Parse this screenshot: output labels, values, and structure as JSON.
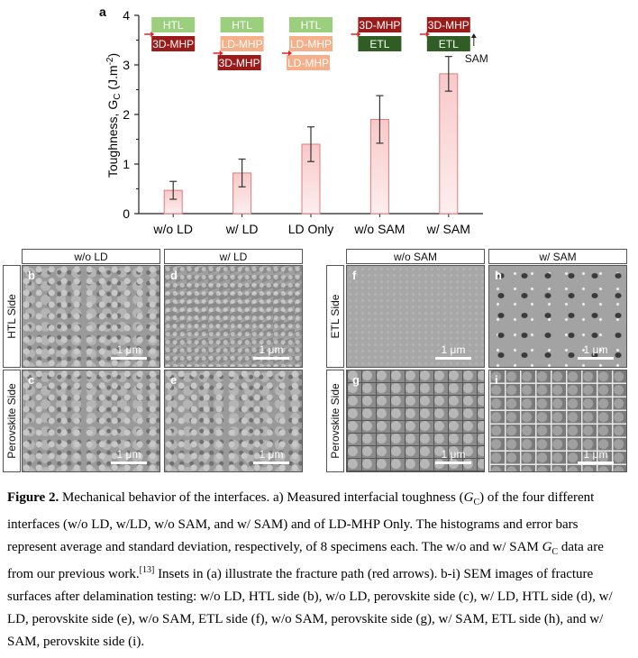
{
  "chart_data": {
    "panel_label": "a",
    "type": "bar",
    "ylabel_main": "Toughness, G",
    "ylabel_sub": "C",
    "ylabel_unit": " (J.m",
    "ylabel_unit_sup": "-2",
    "ylabel_close": ")",
    "ylim": [
      0,
      4
    ],
    "yticks": [
      "0",
      "1",
      "2",
      "3",
      "4"
    ],
    "categories": [
      "w/o LD",
      "w/ LD",
      "LD Only",
      "w/o SAM",
      "w/ SAM"
    ],
    "values": [
      0.47,
      0.82,
      1.4,
      1.9,
      2.82
    ],
    "errors": [
      0.18,
      0.28,
      0.35,
      0.48,
      0.35
    ],
    "bar_color_top": "#f8c9c9",
    "bar_color_bottom": "#fdeeee",
    "bar_stroke": "#e07c7c",
    "insets": [
      {
        "layers": [
          {
            "text": "HTL",
            "color": "#9bcf7e",
            "text_color": "#ffffff"
          },
          {
            "text": "3D-MHP",
            "color": "#9b1b1b",
            "text_color": "#ffffff"
          }
        ],
        "arrow_at": 1
      },
      {
        "layers": [
          {
            "text": "HTL",
            "color": "#9bcf7e",
            "text_color": "#ffffff"
          },
          {
            "text": "LD-MHP",
            "color": "#f5b08a",
            "text_color": "#ffffff"
          },
          {
            "text": "3D-MHP",
            "color": "#9b1b1b",
            "text_color": "#ffffff"
          }
        ],
        "arrow_at": 2
      },
      {
        "layers": [
          {
            "text": "HTL",
            "color": "#9bcf7e",
            "text_color": "#ffffff"
          },
          {
            "text": "LD-MHP",
            "color": "#f5b08a",
            "text_color": "#ffffff"
          },
          {
            "text": "LD-MHP",
            "color": "#f5b08a",
            "text_color": "#ffffff"
          }
        ],
        "arrow_at": 2
      },
      {
        "layers": [
          {
            "text": "3D-MHP",
            "color": "#9b1b1b",
            "text_color": "#ffffff"
          },
          {
            "text": "ETL",
            "color": "#2f5d23",
            "text_color": "#ffffff"
          }
        ],
        "arrow_at": 1
      },
      {
        "layers": [
          {
            "text": "3D-MHP",
            "color": "#9b1b1b",
            "text_color": "#ffffff"
          },
          {
            "text": "ETL",
            "color": "#2f5d23",
            "text_color": "#ffffff"
          }
        ],
        "arrow_at": 1,
        "extra_label": "SAM"
      }
    ],
    "arrow_color": "#e02020"
  },
  "sem": {
    "left_columns": [
      "w/o LD",
      "w/ LD"
    ],
    "right_columns": [
      "w/o SAM",
      "w/ SAM"
    ],
    "left_rows": [
      "HTL Side",
      "Perovskite Side"
    ],
    "right_rows": [
      "ETL Side",
      "Perovskite Side"
    ],
    "scale_bar": "1 μm",
    "panels": [
      {
        "label": "b",
        "texture": "grain"
      },
      {
        "label": "d",
        "texture": "rough"
      },
      {
        "label": "c",
        "texture": "grain"
      },
      {
        "label": "e",
        "texture": "grain"
      },
      {
        "label": "f",
        "texture": "flat"
      },
      {
        "label": "h",
        "texture": "flakes"
      },
      {
        "label": "g",
        "texture": "cells"
      },
      {
        "label": "i",
        "texture": "bright-cells"
      }
    ]
  },
  "caption": {
    "title": "Figure 2.",
    "text_1": " Mechanical behavior of the interfaces. a) Measured interfacial toughness (",
    "g_main": "G",
    "g_sub": "C",
    "text_2": ") of the four different interfaces (w/o LD, w/LD, w/o SAM, and w/ SAM) and of LD-MHP Only. The histograms and error bars represent average and standard deviation, respectively, of 8 specimens each. The w/o and w/ SAM ",
    "g2_main": "G",
    "g2_sub": "C",
    "text_3": " data are from our previous work.",
    "ref": "[13]",
    "text_4": " Insets in (a) illustrate the fracture path (red arrows). b-i) SEM images of fracture surfaces after delamination testing: w/o LD, HTL side (b), w/o LD, perovskite side (c), w/ LD, HTL side (d), w/ LD, perovskite side (e), w/o SAM, ETL side (f), w/o SAM, perovskite side (g), w/ SAM, ETL side (h), and w/ SAM, perovskite side (i)."
  }
}
